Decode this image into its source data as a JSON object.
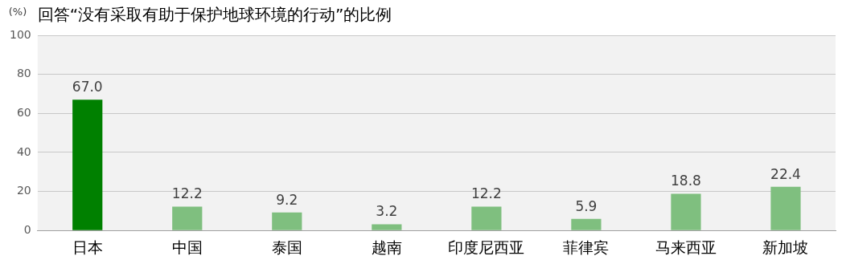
{
  "chart_data": {
    "type": "bar",
    "title": "回答“没有采取有助于保护地球环境的行动”的比例",
    "ylabel": "(%)",
    "categories": [
      "日本",
      "中国",
      "泰国",
      "越南",
      "印度尼西亚",
      "菲律宾",
      "马来西亚",
      "新加坡"
    ],
    "values": [
      67.0,
      12.2,
      9.2,
      3.2,
      12.2,
      5.9,
      18.8,
      22.4
    ],
    "colors": [
      "#008000",
      "#7fbf7f",
      "#7fbf7f",
      "#7fbf7f",
      "#7fbf7f",
      "#7fbf7f",
      "#7fbf7f",
      "#7fbf7f"
    ],
    "value_labels": [
      "67.0",
      "12.2",
      "9.2",
      "3.2",
      "12.2",
      "5.9",
      "18.8",
      "22.4"
    ],
    "ylim": [
      0,
      100
    ],
    "yticks": [
      0,
      20,
      40,
      60,
      80,
      100
    ],
    "grid": "y",
    "legend": false
  }
}
